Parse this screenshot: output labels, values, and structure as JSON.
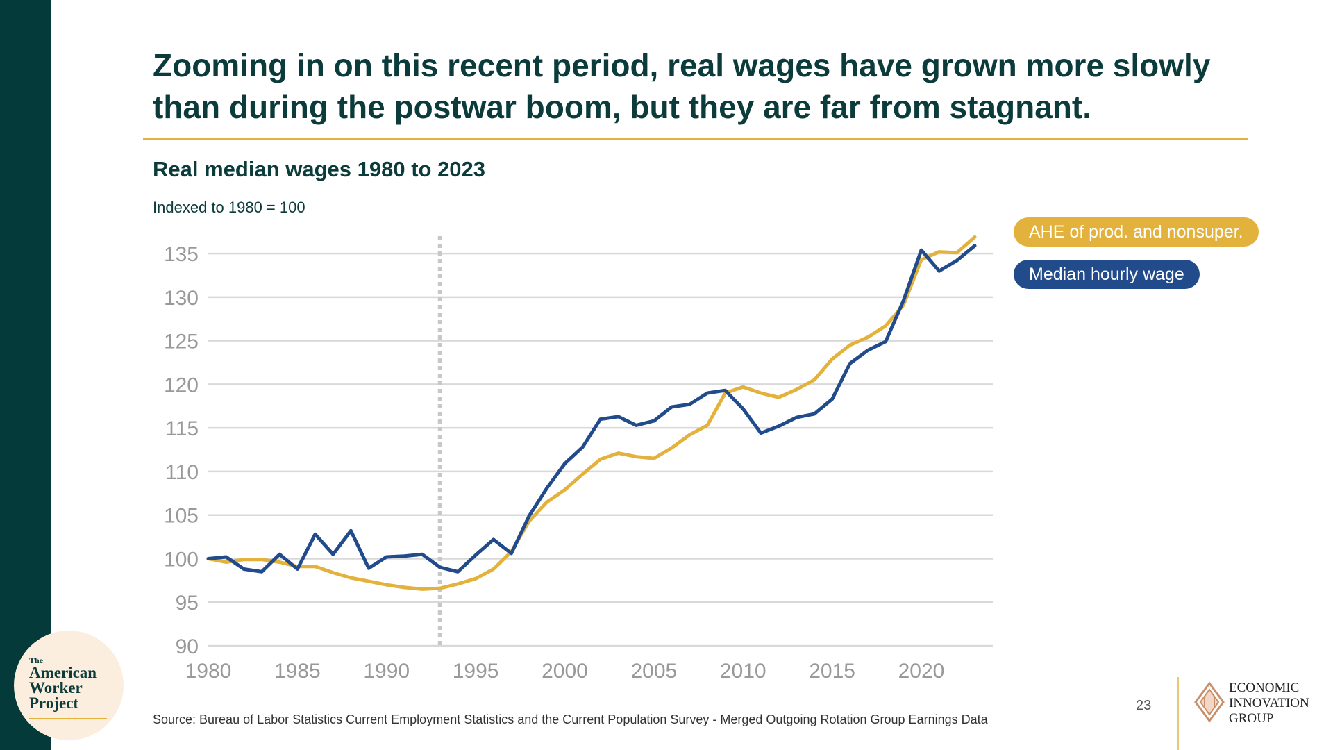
{
  "headline": "Zooming in on this recent period, real wages have grown more slowly than during the postwar boom, but they are far from stagnant.",
  "colors": {
    "accent_gold": "#e3b23c",
    "navy": "#224b8c",
    "dark_teal": "#053a3a",
    "text_teal": "#0b3b3b",
    "grid": "#d9d9d9",
    "axis_text": "#999999"
  },
  "legend": {
    "ahe": "AHE of prod. and nonsuper.",
    "median": "Median hourly wage"
  },
  "source": "Source: Bureau of Labor Statistics Current Employment Statistics and the Current Population Survey - Merged Outgoing Rotation Group Earnings Data",
  "page_number": "23",
  "eig": {
    "line1": "ECONOMIC",
    "line2": "INNOVATION",
    "line3": "GROUP"
  },
  "awp": {
    "the": "The",
    "line1": "American",
    "line2": "Worker",
    "line3": "Project"
  },
  "chart_data": {
    "type": "line",
    "title": "Real median wages 1980 to 2023",
    "subtitle": "Indexed to 1980 = 100",
    "xlabel": "",
    "ylabel": "",
    "xlim": [
      1980,
      2023
    ],
    "ylim": [
      90,
      137
    ],
    "x_ticks": [
      1980,
      1985,
      1990,
      1995,
      2000,
      2005,
      2010,
      2015,
      2020
    ],
    "y_ticks": [
      90,
      95,
      100,
      105,
      110,
      115,
      120,
      125,
      130,
      135
    ],
    "grid": true,
    "legend_position": "top-right",
    "reference_line": {
      "x": 1993,
      "style": "dotted",
      "color": "#c8c8c8"
    },
    "x": [
      1980,
      1981,
      1982,
      1983,
      1984,
      1985,
      1986,
      1987,
      1988,
      1989,
      1990,
      1991,
      1992,
      1993,
      1994,
      1995,
      1996,
      1997,
      1998,
      1999,
      2000,
      2001,
      2002,
      2003,
      2004,
      2005,
      2006,
      2007,
      2008,
      2009,
      2010,
      2011,
      2012,
      2013,
      2014,
      2015,
      2016,
      2017,
      2018,
      2019,
      2020,
      2021,
      2022,
      2023
    ],
    "series": [
      {
        "name": "AHE of prod. and nonsuper.",
        "color": "#e3b23c",
        "values": [
          100,
          99.6,
          99.9,
          99.9,
          99.6,
          99.1,
          99.1,
          98.4,
          97.8,
          97.4,
          97.0,
          96.7,
          96.5,
          96.6,
          97.1,
          97.7,
          98.8,
          100.8,
          104.3,
          106.5,
          107.9,
          109.7,
          111.4,
          112.1,
          111.7,
          111.5,
          112.7,
          114.2,
          115.3,
          119.0,
          119.7,
          119.0,
          118.5,
          119.4,
          120.5,
          122.9,
          124.5,
          125.4,
          126.7,
          129.1,
          134.3,
          135.2,
          135.1,
          136.9
        ]
      },
      {
        "name": "Median hourly wage",
        "color": "#224b8c",
        "values": [
          100,
          100.2,
          98.8,
          98.5,
          100.5,
          98.8,
          102.8,
          100.5,
          103.2,
          98.9,
          100.2,
          100.3,
          100.5,
          99.0,
          98.5,
          100.4,
          102.2,
          100.6,
          104.9,
          108.1,
          110.9,
          112.8,
          116.0,
          116.3,
          115.3,
          115.8,
          117.4,
          117.7,
          119.0,
          119.3,
          117.2,
          114.4,
          115.2,
          116.2,
          116.6,
          118.3,
          122.4,
          123.9,
          124.9,
          129.6,
          135.4,
          133.0,
          134.2,
          135.9
        ]
      }
    ]
  }
}
